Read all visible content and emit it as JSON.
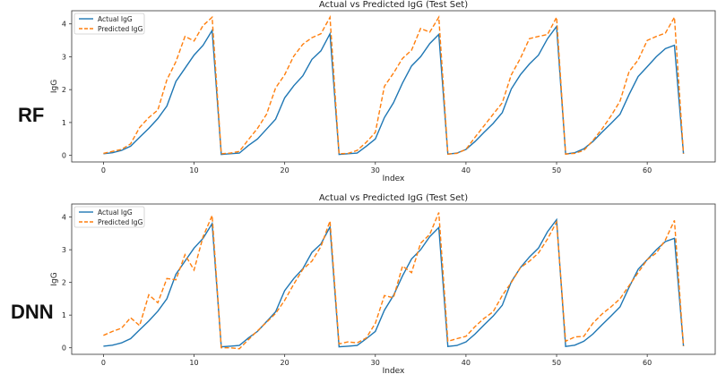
{
  "chart_data": [
    {
      "type": "line",
      "panel_label": "RF",
      "title": "Actual vs Predicted IgG (Test Set)",
      "xlabel": "Index",
      "ylabel": "IgG",
      "xlim": [
        -3.5,
        67.5
      ],
      "ylim": [
        -0.2,
        4.4
      ],
      "xticks": [
        0,
        10,
        20,
        30,
        40,
        50,
        60
      ],
      "yticks": [
        0,
        1,
        2,
        3,
        4
      ],
      "grid": false,
      "legend": "top-left",
      "x_start": 0,
      "series": [
        {
          "name": "Actual IgG",
          "color": "#1f77b4",
          "style": "solid",
          "values": [
            0.05,
            0.08,
            0.15,
            0.28,
            0.55,
            0.82,
            1.12,
            1.5,
            2.25,
            2.65,
            3.05,
            3.35,
            3.8,
            0.03,
            0.05,
            0.07,
            0.3,
            0.5,
            0.8,
            1.1,
            1.75,
            2.12,
            2.42,
            2.92,
            3.18,
            3.7,
            0.03,
            0.05,
            0.07,
            0.28,
            0.5,
            1.15,
            1.6,
            2.2,
            2.72,
            3.0,
            3.4,
            3.68,
            0.04,
            0.07,
            0.18,
            0.42,
            0.7,
            0.97,
            1.3,
            2.02,
            2.45,
            2.78,
            3.05,
            3.55,
            3.92,
            0.04,
            0.08,
            0.2,
            0.42,
            0.7,
            0.97,
            1.25,
            1.85,
            2.4,
            2.7,
            3.0,
            3.25,
            3.35,
            0.05
          ]
        },
        {
          "name": "Predicted IgG",
          "color": "#ff7f0e",
          "style": "dashed",
          "values": [
            0.06,
            0.12,
            0.18,
            0.35,
            0.85,
            1.15,
            1.38,
            2.3,
            2.85,
            3.62,
            3.48,
            3.95,
            4.2,
            0.05,
            0.07,
            0.12,
            0.48,
            0.82,
            1.25,
            2.05,
            2.45,
            3.02,
            3.38,
            3.58,
            3.7,
            4.2,
            0.05,
            0.06,
            0.15,
            0.4,
            0.7,
            2.1,
            2.5,
            2.95,
            3.2,
            3.86,
            3.75,
            4.2,
            0.04,
            0.06,
            0.18,
            0.55,
            0.9,
            1.25,
            1.6,
            2.45,
            2.95,
            3.55,
            3.62,
            3.68,
            4.2,
            0.04,
            0.06,
            0.15,
            0.45,
            0.8,
            1.2,
            1.65,
            2.55,
            2.9,
            3.5,
            3.62,
            3.72,
            4.2,
            0.05
          ]
        }
      ]
    },
    {
      "type": "line",
      "panel_label": "DNN",
      "title": "Actual vs Predicted IgG (Test Set)",
      "xlabel": "Index",
      "ylabel": "IgG",
      "xlim": [
        -3.5,
        67.5
      ],
      "ylim": [
        -0.2,
        4.4
      ],
      "xticks": [
        0,
        10,
        20,
        30,
        40,
        50,
        60
      ],
      "yticks": [
        0,
        1,
        2,
        3,
        4
      ],
      "grid": false,
      "legend": "top-left",
      "x_start": 0,
      "series": [
        {
          "name": "Actual IgG",
          "color": "#1f77b4",
          "style": "solid",
          "values": [
            0.05,
            0.08,
            0.15,
            0.28,
            0.55,
            0.82,
            1.12,
            1.5,
            2.25,
            2.65,
            3.05,
            3.35,
            3.8,
            0.03,
            0.05,
            0.07,
            0.3,
            0.5,
            0.8,
            1.1,
            1.75,
            2.12,
            2.42,
            2.92,
            3.18,
            3.7,
            0.03,
            0.05,
            0.07,
            0.28,
            0.5,
            1.15,
            1.6,
            2.2,
            2.72,
            3.0,
            3.4,
            3.68,
            0.04,
            0.07,
            0.18,
            0.42,
            0.7,
            0.97,
            1.3,
            2.02,
            2.45,
            2.78,
            3.05,
            3.55,
            3.92,
            0.04,
            0.08,
            0.2,
            0.42,
            0.7,
            0.97,
            1.25,
            1.85,
            2.4,
            2.7,
            3.0,
            3.25,
            3.35,
            0.05
          ]
        },
        {
          "name": "Predicted IgG",
          "color": "#ff7f0e",
          "style": "dashed",
          "values": [
            0.38,
            0.5,
            0.6,
            0.92,
            0.68,
            1.62,
            1.38,
            2.12,
            2.08,
            2.85,
            2.38,
            3.4,
            4.05,
            0.0,
            0.0,
            -0.03,
            0.25,
            0.52,
            0.78,
            1.05,
            1.45,
            1.95,
            2.4,
            2.65,
            3.1,
            3.88,
            0.12,
            0.18,
            0.15,
            0.3,
            0.75,
            1.6,
            1.53,
            2.5,
            2.3,
            3.2,
            3.47,
            4.14,
            0.2,
            0.28,
            0.35,
            0.65,
            0.9,
            1.1,
            1.6,
            2.0,
            2.45,
            2.65,
            2.9,
            3.33,
            3.85,
            0.2,
            0.33,
            0.35,
            0.75,
            1.03,
            1.25,
            1.5,
            1.9,
            2.3,
            2.7,
            2.9,
            3.3,
            3.9,
            0.05
          ]
        }
      ]
    }
  ]
}
